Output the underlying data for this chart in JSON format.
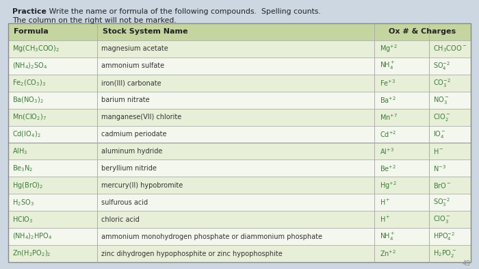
{
  "bg_color": "#ccd7e2",
  "header_bg": "#c5d5a0",
  "row_colors": [
    "#e8efd8",
    "#f4f7ed"
  ],
  "border_color": "#aaaaaa",
  "text_dark": "#222222",
  "text_green": "#3a7a3a",
  "text_name": "#333333",
  "practice_bold": "Practice",
  "practice_rest": ":  Write the name or formula of the following compounds.  Spelling counts.",
  "practice_line2": "The column on the right will not be marked.",
  "headers": [
    "Formula",
    "Stock System Name",
    "Ox # & Charges"
  ],
  "formulas": [
    "Mg(CH$_3$COO)$_2$",
    "(NH$_4$)$_2$SO$_4$",
    "Fe$_2$(CO$_3$)$_3$",
    "Ba(NO$_3$)$_2$",
    "Mn(ClO$_2$)$_7$",
    "Cd(IO$_4$)$_2$",
    "AlH$_3$",
    "Be$_3$N$_2$",
    "Hg(BrO)$_2$",
    "H$_2$SO$_3$",
    "HClO$_3$",
    "(NH$_4$)$_2$HPO$_4$",
    "Zn(H$_2$PO$_2$)$_2$"
  ],
  "names": [
    "magnesium acetate",
    "ammonium sulfate",
    "iron(III) carbonate",
    "barium nitrate",
    "manganese(VII) chlorite",
    "cadmium periodate",
    "aluminum hydride",
    "beryllium nitride",
    "mercury(II) hypobromite",
    "sulfurous acid",
    "chloric acid",
    "ammonium monohydrogen phosphate or diammonium phosphate",
    "zinc dihydrogen hypophosphite or zinc hypophosphite"
  ],
  "ox": [
    "Mg$^{+2}$",
    "NH$_4^+$",
    "Fe$^{+3}$",
    "Ba$^{+2}$",
    "Mn$^{+7}$",
    "Cd$^{+2}$",
    "Al$^{+3}$",
    "Be$^{+2}$",
    "Hg$^{+2}$",
    "H$^+$",
    "H$^+$",
    "NH$_4^+$",
    "Zn$^{+2}$"
  ],
  "charges": [
    "CH$_3$COO$^-$",
    "SO$_4^{-2}$",
    "CO$_3^{-2}$",
    "NO$_3^-$",
    "ClO$_2^-$",
    "IO$_4^-$",
    "H$^-$",
    "N$^{-3}$",
    "BrO$^-$",
    "SO$_3^{-2}$",
    "ClO$_3^-$",
    "HPO$_4^{-2}$",
    "H$_2$PO$_2^-$"
  ],
  "page_num": "49",
  "fig_width": 7.0,
  "fig_height": 3.93
}
